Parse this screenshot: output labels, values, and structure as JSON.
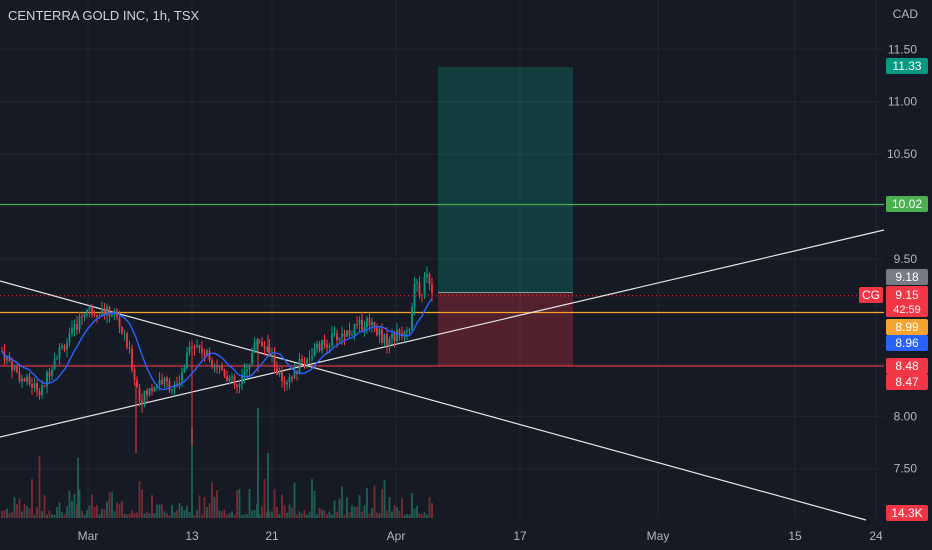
{
  "header": {
    "symbol_title": "CENTERRA GOLD INC, 1h, TSX",
    "currency": "CAD"
  },
  "chart_data": {
    "type": "candlestick",
    "y_axis": {
      "range": [
        7.03,
        11.97
      ],
      "ticks": [
        "11.50",
        "11.00",
        "10.50",
        "10.00",
        "9.50",
        "8.50",
        "8.00",
        "7.50"
      ]
    },
    "x_axis": {
      "ticks": [
        "Mar",
        "13",
        "21",
        "Apr",
        "17",
        "May",
        "15",
        "24"
      ]
    },
    "price_labels": [
      {
        "text": "11.33",
        "value": 11.33,
        "color": "#089981"
      },
      {
        "text": "10.02",
        "value": 10.02,
        "color": "#4caf50"
      },
      {
        "text": "9.18",
        "value": 9.18,
        "color": "#787b86"
      },
      {
        "text": "8.99",
        "value": 8.99,
        "color": "#f7a330"
      },
      {
        "text": "8.96",
        "value": 8.96,
        "color": "#2962ff"
      },
      {
        "text": "8.48",
        "value": 8.48,
        "color": "#f23645"
      },
      {
        "text": "8.47",
        "value": 8.47,
        "color": "#f23645"
      }
    ],
    "current_price": {
      "symbol": "CG",
      "price": "9.15",
      "countdown": "42:59",
      "value": 9.15,
      "color": "#f23645"
    },
    "volume_label": {
      "text": "14.3K",
      "color": "#f23645"
    },
    "horizontal_levels": [
      {
        "value": 10.02,
        "color": "#4caf50"
      },
      {
        "value": 8.99,
        "color": "#f7a330"
      },
      {
        "value": 8.48,
        "color": "#f23645"
      }
    ],
    "position": {
      "entry": 9.18,
      "target": 11.33,
      "stop": 8.48
    },
    "colors": {
      "up": "#089981",
      "down": "#f23645",
      "ma": "#2962ff",
      "trendline": "#e6e6e6"
    }
  }
}
